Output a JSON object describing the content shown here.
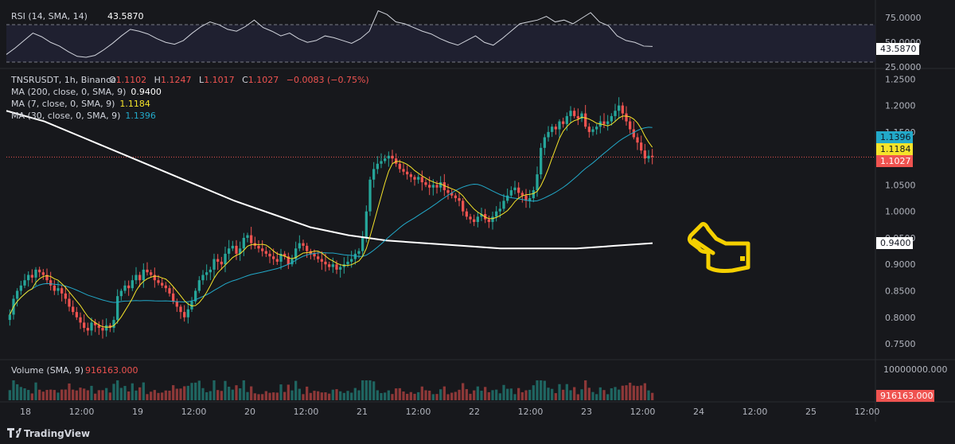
{
  "symbol": "TNSRUSDT",
  "timeframe": "1h",
  "exchange": "Binance",
  "ohlc": {
    "o_label": "O",
    "o": "1.1102",
    "h_label": "H",
    "h": "1.1247",
    "l_label": "L",
    "l": "1.1017",
    "c_label": "C",
    "c": "1.1027",
    "change": "−0.0083 (−0.75%)"
  },
  "indicators": {
    "rsi": {
      "label": "RSI (14, SMA, 14)",
      "value": "43.5870",
      "badge": "43.5870"
    },
    "ma200": {
      "label": "MA (200, close, 0, SMA, 9)",
      "value": "0.9400",
      "badge": "0.9400"
    },
    "ma7": {
      "label": "MA (7, close, 0, SMA, 9)",
      "value": "1.1184",
      "badge": "1.1184"
    },
    "ma30": {
      "label": "MA (30, close, 0, SMA, 9)",
      "value": "1.1396",
      "badge": "1.1396"
    },
    "volume": {
      "label": "Volume (SMA, 9)",
      "value": "916163.000",
      "badge": "916163.000"
    },
    "price_badge": "1.1027"
  },
  "price_axis": [
    "1.2500",
    "1.2000",
    "1.1500",
    "1.0500",
    "1.0000",
    "0.9500",
    "0.9000",
    "0.8500",
    "0.8000",
    "0.7500"
  ],
  "rsi_axis": [
    "75.0000",
    "50.0000",
    "25.0000"
  ],
  "volume_axis": [
    "10000000.000"
  ],
  "time_axis": [
    "18",
    "12:00",
    "19",
    "12:00",
    "20",
    "12:00",
    "21",
    "12:00",
    "22",
    "12:00",
    "23",
    "12:00",
    "24",
    "12:00",
    "25",
    "12:00"
  ],
  "brand": "TradingView",
  "colors": {
    "bg": "#17181c",
    "up": "#26a69a",
    "down": "#ef5350",
    "ma200": "#ffffff",
    "ma7": "#f5e32a",
    "ma30": "#22a9c9",
    "rsi": "#d1d4dc",
    "rsi_band": "#1f2030",
    "annotation": "#f5d000"
  },
  "annotation_icon": "pointing-hand-icon",
  "chart_data": {
    "type": "candlestick",
    "x_start": "18 00:00",
    "interval": "1h",
    "price_range": [
      0.72,
      1.27
    ],
    "rsi_range": [
      20,
      85
    ],
    "rsi_bands": [
      70,
      30
    ],
    "closes": [
      0.805,
      0.835,
      0.85,
      0.86,
      0.87,
      0.88,
      0.875,
      0.89,
      0.885,
      0.88,
      0.87,
      0.86,
      0.85,
      0.855,
      0.845,
      0.835,
      0.82,
      0.81,
      0.8,
      0.79,
      0.78,
      0.775,
      0.79,
      0.785,
      0.78,
      0.775,
      0.785,
      0.78,
      0.795,
      0.84,
      0.85,
      0.86,
      0.855,
      0.87,
      0.88,
      0.87,
      0.89,
      0.885,
      0.88,
      0.87,
      0.865,
      0.86,
      0.855,
      0.845,
      0.83,
      0.82,
      0.81,
      0.8,
      0.815,
      0.83,
      0.85,
      0.87,
      0.88,
      0.885,
      0.89,
      0.91,
      0.905,
      0.9,
      0.92,
      0.93,
      0.935,
      0.92,
      0.93,
      0.95,
      0.955,
      0.94,
      0.935,
      0.93,
      0.925,
      0.92,
      0.915,
      0.91,
      0.905,
      0.92,
      0.915,
      0.9,
      0.91,
      0.93,
      0.94,
      0.935,
      0.925,
      0.92,
      0.915,
      0.91,
      0.905,
      0.9,
      0.895,
      0.9,
      0.89,
      0.895,
      0.9,
      0.905,
      0.91,
      0.92,
      0.925,
      0.95,
      1.0,
      1.06,
      1.08,
      1.09,
      1.095,
      1.1,
      1.105,
      1.1,
      1.09,
      1.08,
      1.075,
      1.07,
      1.065,
      1.06,
      1.065,
      1.055,
      1.05,
      1.045,
      1.05,
      1.045,
      1.055,
      1.04,
      1.035,
      1.03,
      1.025,
      1.02,
      1.0,
      0.99,
      0.985,
      0.98,
      0.99,
      0.995,
      0.985,
      0.98,
      0.99,
      1.0,
      1.005,
      1.02,
      1.03,
      1.04,
      1.045,
      1.035,
      1.03,
      1.02,
      1.025,
      1.04,
      1.07,
      1.12,
      1.14,
      1.15,
      1.16,
      1.155,
      1.17,
      1.165,
      1.18,
      1.19,
      1.18,
      1.175,
      1.185,
      1.16,
      1.15,
      1.155,
      1.16,
      1.17,
      1.165,
      1.17,
      1.18,
      1.19,
      1.2,
      1.185,
      1.17,
      1.155,
      1.14,
      1.13,
      1.115,
      1.1,
      1.105,
      1.103
    ],
    "ma200": [
      1.19,
      1.17,
      1.14,
      1.11,
      1.08,
      1.05,
      1.02,
      0.995,
      0.97,
      0.955,
      0.945,
      0.94,
      0.935,
      0.93,
      0.93,
      0.93,
      0.935,
      0.94
    ],
    "rsi": [
      35,
      42,
      50,
      58,
      54,
      48,
      44,
      38,
      33,
      32,
      34,
      40,
      47,
      55,
      62,
      60,
      57,
      52,
      48,
      46,
      50,
      58,
      65,
      70,
      67,
      62,
      60,
      65,
      72,
      64,
      60,
      55,
      58,
      52,
      48,
      50,
      55,
      53,
      50,
      47,
      52,
      60,
      82,
      78,
      70,
      68,
      64,
      60,
      57,
      52,
      48,
      45,
      50,
      55,
      48,
      45,
      52,
      60,
      68,
      70,
      72,
      76,
      70,
      72,
      68,
      74,
      80,
      70,
      66,
      55,
      50,
      48,
      44,
      43.6
    ]
  }
}
